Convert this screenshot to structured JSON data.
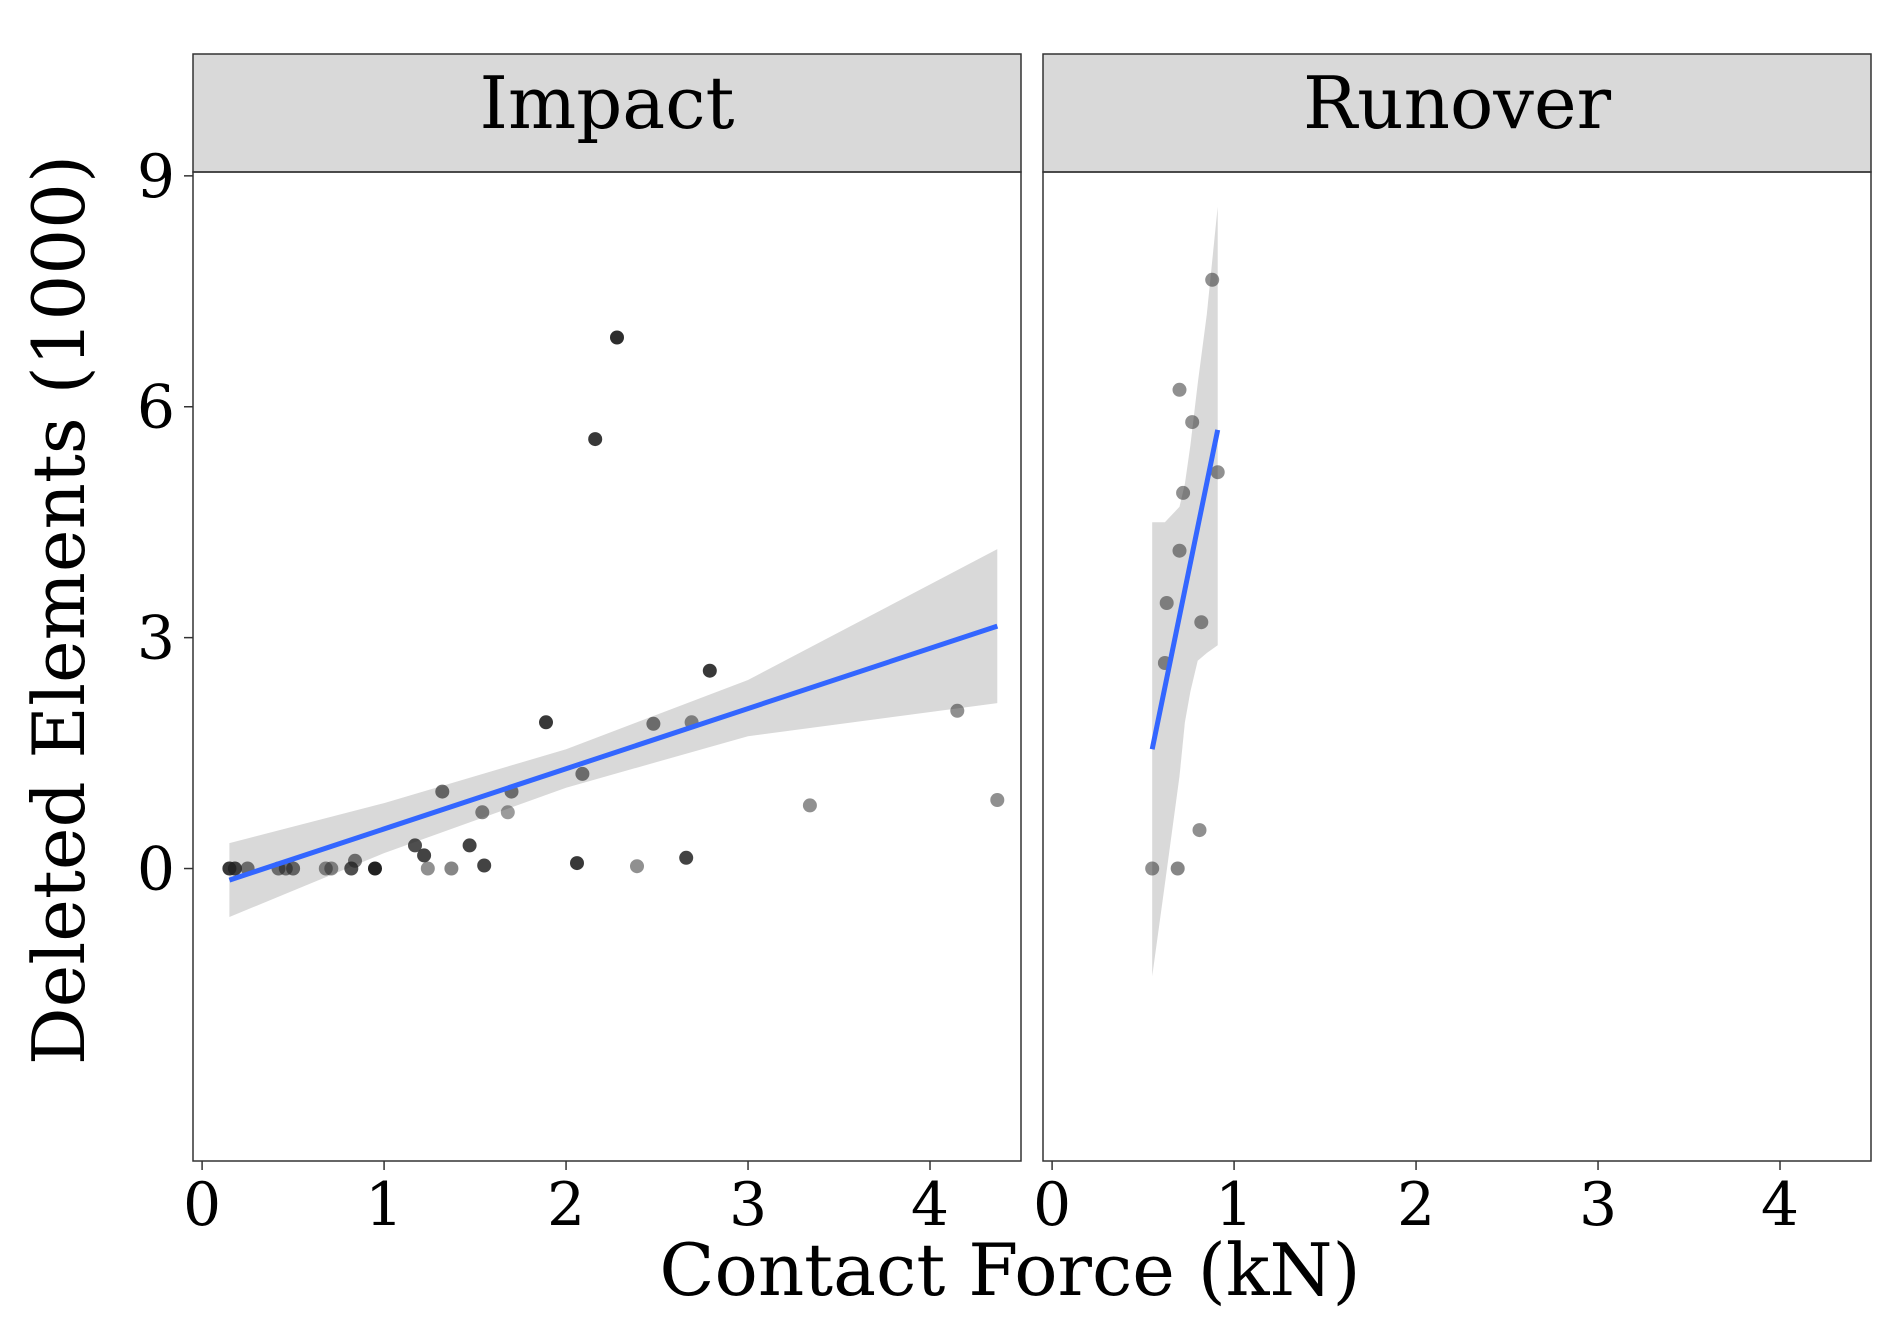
{
  "chart_data": {
    "type": "scatter",
    "title": "",
    "xlabel": "Contact Force (kN)",
    "ylabel": "Deleted Elements (1000)",
    "xlim": [
      -0.05,
      4.5
    ],
    "ylim": [
      -3.8,
      9.05
    ],
    "x_ticks": [
      0,
      1,
      2,
      3,
      4
    ],
    "y_ticks": [
      0,
      3,
      6,
      9
    ],
    "x_tick_labels": [
      "0",
      "1",
      "2",
      "3",
      "4"
    ],
    "y_tick_labels": [
      "0",
      "3",
      "6",
      "9"
    ],
    "grid": false,
    "legend": "none",
    "colors": {
      "point": "#222222",
      "fit_line": "#3366ff",
      "ci_band": "#d9d9d9",
      "strip_bg": "#d9d9d9",
      "panel_border": "#333333"
    },
    "panels": [
      {
        "name": "Impact",
        "points": [
          {
            "x": 0.15,
            "y": 0.0,
            "shade": 0.9
          },
          {
            "x": 0.18,
            "y": 0.0,
            "shade": 0.85
          },
          {
            "x": 0.25,
            "y": 0.0,
            "shade": 0.6
          },
          {
            "x": 0.42,
            "y": 0.0,
            "shade": 0.6
          },
          {
            "x": 0.46,
            "y": 0.0,
            "shade": 0.6
          },
          {
            "x": 0.5,
            "y": 0.0,
            "shade": 0.65
          },
          {
            "x": 0.68,
            "y": 0.0,
            "shade": 0.5
          },
          {
            "x": 0.71,
            "y": 0.0,
            "shade": 0.5
          },
          {
            "x": 0.82,
            "y": 0.0,
            "shade": 0.8
          },
          {
            "x": 0.84,
            "y": 0.1,
            "shade": 0.6
          },
          {
            "x": 0.95,
            "y": 0.0,
            "shade": 1.0
          },
          {
            "x": 1.17,
            "y": 0.3,
            "shade": 0.8
          },
          {
            "x": 1.22,
            "y": 0.17,
            "shade": 0.85
          },
          {
            "x": 1.24,
            "y": 0.0,
            "shade": 0.5
          },
          {
            "x": 1.32,
            "y": 1.0,
            "shade": 0.65
          },
          {
            "x": 1.37,
            "y": 0.0,
            "shade": 0.55
          },
          {
            "x": 1.47,
            "y": 0.3,
            "shade": 0.85
          },
          {
            "x": 1.54,
            "y": 0.73,
            "shade": 0.55
          },
          {
            "x": 1.55,
            "y": 0.04,
            "shade": 0.85
          },
          {
            "x": 1.68,
            "y": 0.73,
            "shade": 0.45
          },
          {
            "x": 1.7,
            "y": 1.0,
            "shade": 0.6
          },
          {
            "x": 1.89,
            "y": 1.9,
            "shade": 0.9
          },
          {
            "x": 2.06,
            "y": 0.07,
            "shade": 0.9
          },
          {
            "x": 2.09,
            "y": 1.23,
            "shade": 0.6
          },
          {
            "x": 2.16,
            "y": 5.58,
            "shade": 0.9
          },
          {
            "x": 2.28,
            "y": 6.9,
            "shade": 0.95
          },
          {
            "x": 2.39,
            "y": 0.03,
            "shade": 0.5
          },
          {
            "x": 2.48,
            "y": 1.88,
            "shade": 0.6
          },
          {
            "x": 2.66,
            "y": 0.14,
            "shade": 0.85
          },
          {
            "x": 2.69,
            "y": 1.9,
            "shade": 0.5
          },
          {
            "x": 2.79,
            "y": 2.57,
            "shade": 0.9
          },
          {
            "x": 3.34,
            "y": 0.82,
            "shade": 0.5
          },
          {
            "x": 4.15,
            "y": 2.05,
            "shade": 0.5
          },
          {
            "x": 4.37,
            "y": 0.89,
            "shade": 0.5
          }
        ],
        "fit": {
          "x": [
            0.15,
            4.37
          ],
          "y": [
            -0.15,
            3.15
          ]
        },
        "ci": {
          "x": [
            0.15,
            1.0,
            2.0,
            3.0,
            4.37
          ],
          "upper": [
            0.33,
            0.85,
            1.55,
            2.45,
            4.15
          ],
          "lower": [
            -0.63,
            0.2,
            1.05,
            1.72,
            2.15
          ]
        }
      },
      {
        "name": "Runover",
        "points": [
          {
            "x": 0.55,
            "y": 0.0,
            "shade": 0.5
          },
          {
            "x": 0.62,
            "y": 2.67,
            "shade": 0.5
          },
          {
            "x": 0.63,
            "y": 3.45,
            "shade": 0.5
          },
          {
            "x": 0.69,
            "y": 0.0,
            "shade": 0.55
          },
          {
            "x": 0.7,
            "y": 4.13,
            "shade": 0.5
          },
          {
            "x": 0.7,
            "y": 6.22,
            "shade": 0.5
          },
          {
            "x": 0.72,
            "y": 4.88,
            "shade": 0.5
          },
          {
            "x": 0.77,
            "y": 5.8,
            "shade": 0.5
          },
          {
            "x": 0.81,
            "y": 0.5,
            "shade": 0.5
          },
          {
            "x": 0.82,
            "y": 3.2,
            "shade": 0.5
          },
          {
            "x": 0.88,
            "y": 7.65,
            "shade": 0.5
          },
          {
            "x": 0.91,
            "y": 5.15,
            "shade": 0.5
          }
        ],
        "fit": {
          "x": [
            0.55,
            0.91
          ],
          "y": [
            1.55,
            5.7
          ]
        },
        "ci": {
          "x": [
            0.55,
            0.62,
            0.7,
            0.73,
            0.76,
            0.8,
            0.85,
            0.91
          ],
          "upper": [
            4.5,
            4.5,
            4.7,
            5.0,
            5.5,
            6.3,
            7.2,
            8.6
          ],
          "lower": [
            -1.4,
            -0.2,
            1.2,
            1.9,
            2.3,
            2.7,
            2.8,
            2.9
          ]
        }
      }
    ]
  }
}
